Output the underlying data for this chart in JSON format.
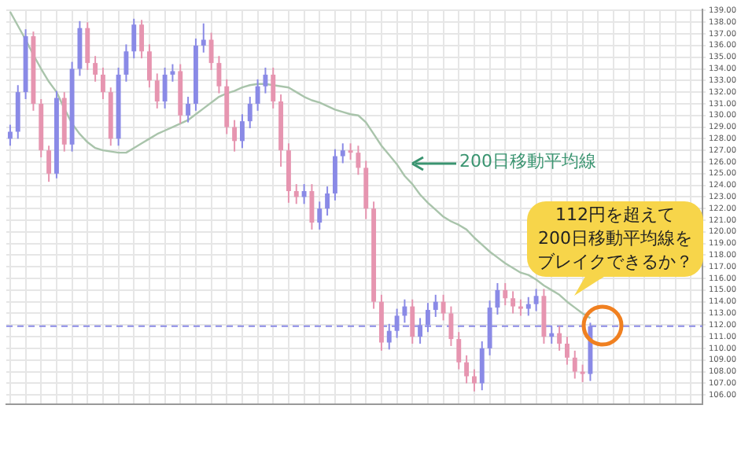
{
  "chart_data": {
    "type": "candlestick",
    "categories": [
      null,
      null,
      null,
      null,
      null,
      null,
      null,
      null,
      null,
      null,
      null,
      null,
      null,
      null,
      null,
      null,
      null,
      null,
      null,
      null,
      null,
      null,
      null,
      null,
      null,
      null,
      null,
      null,
      null,
      null,
      null,
      null,
      null,
      null,
      null,
      null,
      null,
      null,
      null,
      null,
      null,
      null,
      null,
      null,
      null,
      null,
      null,
      null,
      null,
      null,
      null,
      null,
      null,
      null,
      null,
      null,
      null,
      null,
      null,
      null,
      null,
      null,
      null,
      null,
      null,
      null,
      null,
      null,
      null,
      null,
      null,
      null,
      null,
      null,
      null,
      null,
      null,
      null,
      null,
      null,
      null,
      null,
      null,
      null,
      null,
      null,
      null,
      null,
      null,
      null
    ],
    "ohlc": [
      [
        128,
        129.2,
        127.4,
        128.6
      ],
      [
        128.6,
        132.6,
        128,
        132
      ],
      [
        132,
        137.4,
        131.4,
        136.8
      ],
      [
        136.8,
        137.2,
        130.4,
        131
      ],
      [
        131,
        131.4,
        126.4,
        127
      ],
      [
        127,
        127.4,
        124.3,
        125
      ],
      [
        125,
        132.1,
        124.6,
        131.5
      ],
      [
        131.5,
        132,
        126.9,
        127.5
      ],
      [
        127.5,
        134.6,
        126.9,
        134
      ],
      [
        134,
        138.1,
        133.4,
        137.5
      ],
      [
        137.5,
        138,
        133.9,
        134.5
      ],
      [
        134.5,
        135.1,
        132.9,
        133.5
      ],
      [
        133.5,
        134.1,
        131.4,
        132
      ],
      [
        132,
        132.4,
        127.4,
        128
      ],
      [
        128,
        134.1,
        127.4,
        133.5
      ],
      [
        133.5,
        136.1,
        132.9,
        135.5
      ],
      [
        135.5,
        138.3,
        134.9,
        137.8
      ],
      [
        137.8,
        138.2,
        134.9,
        135.5
      ],
      [
        135.5,
        136.1,
        132.4,
        133
      ],
      [
        133,
        133.6,
        130.6,
        131.2
      ],
      [
        131.2,
        134.1,
        130.6,
        133.5
      ],
      [
        133.5,
        134.4,
        132.9,
        133.8
      ],
      [
        133.8,
        134.4,
        129.3,
        130
      ],
      [
        130,
        131.6,
        129.4,
        131
      ],
      [
        131,
        136.6,
        130.4,
        136
      ],
      [
        136,
        137.9,
        135.4,
        136.5
      ],
      [
        136.5,
        137.1,
        133.9,
        134.5
      ],
      [
        134.5,
        135.1,
        131.9,
        132.5
      ],
      [
        132.5,
        133.1,
        128.4,
        129
      ],
      [
        129,
        129.6,
        126.9,
        127.8
      ],
      [
        127.8,
        130.1,
        127.2,
        129.5
      ],
      [
        129.5,
        131.6,
        128.9,
        131
      ],
      [
        131,
        133.1,
        130.4,
        132.5
      ],
      [
        132.5,
        134.1,
        131.9,
        133.5
      ],
      [
        133.5,
        134.1,
        130.6,
        131.2
      ],
      [
        131.2,
        131.8,
        125.6,
        127
      ],
      [
        127,
        127.6,
        122.5,
        123.5
      ],
      [
        123.5,
        124.1,
        122.4,
        123
      ],
      [
        123,
        124.1,
        122.4,
        123.5
      ],
      [
        123.5,
        124.1,
        120.2,
        120.8
      ],
      [
        120.8,
        122.6,
        120.2,
        122
      ],
      [
        122,
        123.9,
        121.4,
        123.3
      ],
      [
        123.3,
        127.1,
        122.7,
        126.5
      ],
      [
        126.5,
        127.6,
        125.9,
        127
      ],
      [
        127,
        127.6,
        126.2,
        126.8
      ],
      [
        126.8,
        127.4,
        124.9,
        125.5
      ],
      [
        125.5,
        126.1,
        121.1,
        122
      ],
      [
        122,
        122.6,
        113.4,
        114
      ],
      [
        114,
        114.6,
        109.8,
        110.5
      ],
      [
        110.5,
        112.1,
        109.9,
        111.5
      ],
      [
        111.5,
        113.4,
        110.9,
        112.8
      ],
      [
        112.8,
        114.2,
        112.2,
        113.6
      ],
      [
        113.6,
        114.2,
        110.4,
        111
      ],
      [
        111,
        112.6,
        110.4,
        112
      ],
      [
        112,
        113.9,
        111.4,
        113.3
      ],
      [
        113.3,
        114.6,
        112.7,
        114
      ],
      [
        114,
        114.6,
        112.4,
        113
      ],
      [
        113,
        113.6,
        110.2,
        110.8
      ],
      [
        110.8,
        111.4,
        108.2,
        108.8
      ],
      [
        108.8,
        109.4,
        107,
        107.6
      ],
      [
        107.6,
        108.2,
        106.3,
        107
      ],
      [
        107,
        110.6,
        106.4,
        110
      ],
      [
        110,
        114.1,
        109.4,
        113.5
      ],
      [
        113.5,
        115.6,
        112.9,
        115
      ],
      [
        115,
        115.6,
        113.7,
        114.3
      ],
      [
        114.3,
        114.9,
        113,
        113.6
      ],
      [
        113.6,
        114.2,
        112.8,
        113.4
      ],
      [
        113.4,
        114.4,
        112.8,
        113.8
      ],
      [
        113.8,
        115.1,
        113.2,
        114.5
      ],
      [
        114.5,
        115.1,
        110.4,
        111
      ],
      [
        111,
        111.9,
        110.4,
        111.3
      ],
      [
        111.3,
        111.9,
        109.8,
        110.4
      ],
      [
        110.4,
        111,
        108.6,
        109.2
      ],
      [
        109.2,
        109.8,
        107.4,
        108
      ],
      [
        108,
        108.6,
        107.1,
        107.8
      ],
      [
        107.8,
        112.2,
        107.2,
        111.9
      ],
      null,
      null,
      null,
      null,
      null,
      null,
      null,
      null,
      null,
      null,
      null,
      null,
      null,
      null
    ],
    "colors": [
      "#8a8ae6",
      "#8a8ae6",
      "#8a8ae6",
      "#e695b0",
      "#e695b0",
      "#e695b0",
      "#8a8ae6",
      "#e695b0",
      "#8a8ae6",
      "#8a8ae6",
      "#e695b0",
      "#e695b0",
      "#e695b0",
      "#e695b0",
      "#8a8ae6",
      "#8a8ae6",
      "#8a8ae6",
      "#e695b0",
      "#e695b0",
      "#e695b0",
      "#8a8ae6",
      "#8a8ae6",
      "#e695b0",
      "#8a8ae6",
      "#8a8ae6",
      "#8a8ae6",
      "#e695b0",
      "#e695b0",
      "#e695b0",
      "#e695b0",
      "#8a8ae6",
      "#8a8ae6",
      "#8a8ae6",
      "#8a8ae6",
      "#e695b0",
      "#e695b0",
      "#e695b0",
      "#e695b0",
      "#8a8ae6",
      "#e695b0",
      "#8a8ae6",
      "#8a8ae6",
      "#8a8ae6",
      "#8a8ae6",
      "#e695b0",
      "#e695b0",
      "#e695b0",
      "#e695b0",
      "#e695b0",
      "#8a8ae6",
      "#8a8ae6",
      "#8a8ae6",
      "#e695b0",
      "#8a8ae6",
      "#8a8ae6",
      "#8a8ae6",
      "#e695b0",
      "#e695b0",
      "#e695b0",
      "#e695b0",
      "#e695b0",
      "#8a8ae6",
      "#8a8ae6",
      "#8a8ae6",
      "#e695b0",
      "#e695b0",
      "#e695b0",
      "#8a8ae6",
      "#8a8ae6",
      "#e695b0",
      "#8a8ae6",
      "#e695b0",
      "#e695b0",
      "#e695b0",
      "#e695b0",
      "#8a8ae6",
      null,
      null,
      null,
      null,
      null,
      null,
      null,
      null,
      null,
      null,
      null,
      null,
      null,
      null
    ],
    "series": [
      {
        "name": "200日移動平均線",
        "type": "line",
        "color": "#a9c4ab",
        "values": [
          138.9,
          137.7,
          136.5,
          135.2,
          134,
          132.9,
          132,
          130.6,
          129.3,
          128.4,
          127.7,
          127.2,
          127,
          126.9,
          126.8,
          126.8,
          127.2,
          127.6,
          128,
          128.4,
          128.7,
          129,
          129.3,
          129.6,
          130.1,
          130.6,
          131.1,
          131.6,
          131.9,
          132.1,
          132.4,
          132.6,
          132.7,
          132.7,
          132.6,
          132.5,
          132.4,
          132,
          131.6,
          131.3,
          131.1,
          130.8,
          130.5,
          130.3,
          130.1,
          130,
          129.4,
          128.4,
          127.4,
          126.6,
          125.8,
          124.8,
          124.1,
          123.2,
          122.5,
          121.9,
          121.3,
          120.9,
          120.6,
          120.2,
          119.5,
          118.9,
          118.3,
          117.8,
          117.3,
          116.9,
          116.5,
          116.3,
          115.9,
          115.4,
          115,
          114.6,
          114,
          113.5,
          113,
          112.6,
          null,
          null,
          null,
          null,
          null,
          null,
          null,
          null,
          null,
          null,
          null,
          null,
          null,
          null
        ]
      }
    ],
    "ylim": [
      105.2,
      139.1
    ],
    "yticks": [
      {
        "value": 106,
        "label": "106.00"
      },
      {
        "value": 107,
        "label": "107.00"
      },
      {
        "value": 108,
        "label": "108.00"
      },
      {
        "value": 109,
        "label": "109.00"
      },
      {
        "value": 110,
        "label": "110.00"
      },
      {
        "value": 111,
        "label": "111.00"
      },
      {
        "value": 112,
        "label": "112.00"
      },
      {
        "value": 113,
        "label": "113.00"
      },
      {
        "value": 114,
        "label": "114.00"
      },
      {
        "value": 115,
        "label": "115.00"
      },
      {
        "value": 116,
        "label": "116.00"
      },
      {
        "value": 117,
        "label": "117.00"
      },
      {
        "value": 118,
        "label": "118.00"
      },
      {
        "value": 119,
        "label": "119.00"
      },
      {
        "value": 120,
        "label": "120.00"
      },
      {
        "value": 121,
        "label": "121.00"
      },
      {
        "value": 122,
        "label": "122.00"
      },
      {
        "value": 123,
        "label": "123.00"
      },
      {
        "value": 124,
        "label": "124.00"
      },
      {
        "value": 125,
        "label": "125.00"
      },
      {
        "value": 126,
        "label": "126.00"
      },
      {
        "value": 127,
        "label": "127.00"
      },
      {
        "value": 128,
        "label": "128.00"
      },
      {
        "value": 129,
        "label": "129.00"
      },
      {
        "value": 130,
        "label": "130.00"
      },
      {
        "value": 131,
        "label": "131.00"
      },
      {
        "value": 132,
        "label": "132.00"
      },
      {
        "value": 133,
        "label": "133.00"
      },
      {
        "value": 134,
        "label": "134.00"
      },
      {
        "value": 135,
        "label": "135.00"
      },
      {
        "value": 136,
        "label": "136.00"
      },
      {
        "value": 137,
        "label": "137.00"
      },
      {
        "value": 138,
        "label": "138.00"
      },
      {
        "value": 139,
        "label": "139.00"
      }
    ],
    "ref_lines": [
      {
        "axis": "y",
        "value": 111.9,
        "color": "#8a8ae6",
        "line_style": "dashed"
      }
    ],
    "annotations": [
      "112円を超えて",
      "200日移動平均線を",
      "ブレイクできるか？"
    ],
    "grid": true,
    "legend": false,
    "marker": "none",
    "tick_labels": "y"
  }
}
